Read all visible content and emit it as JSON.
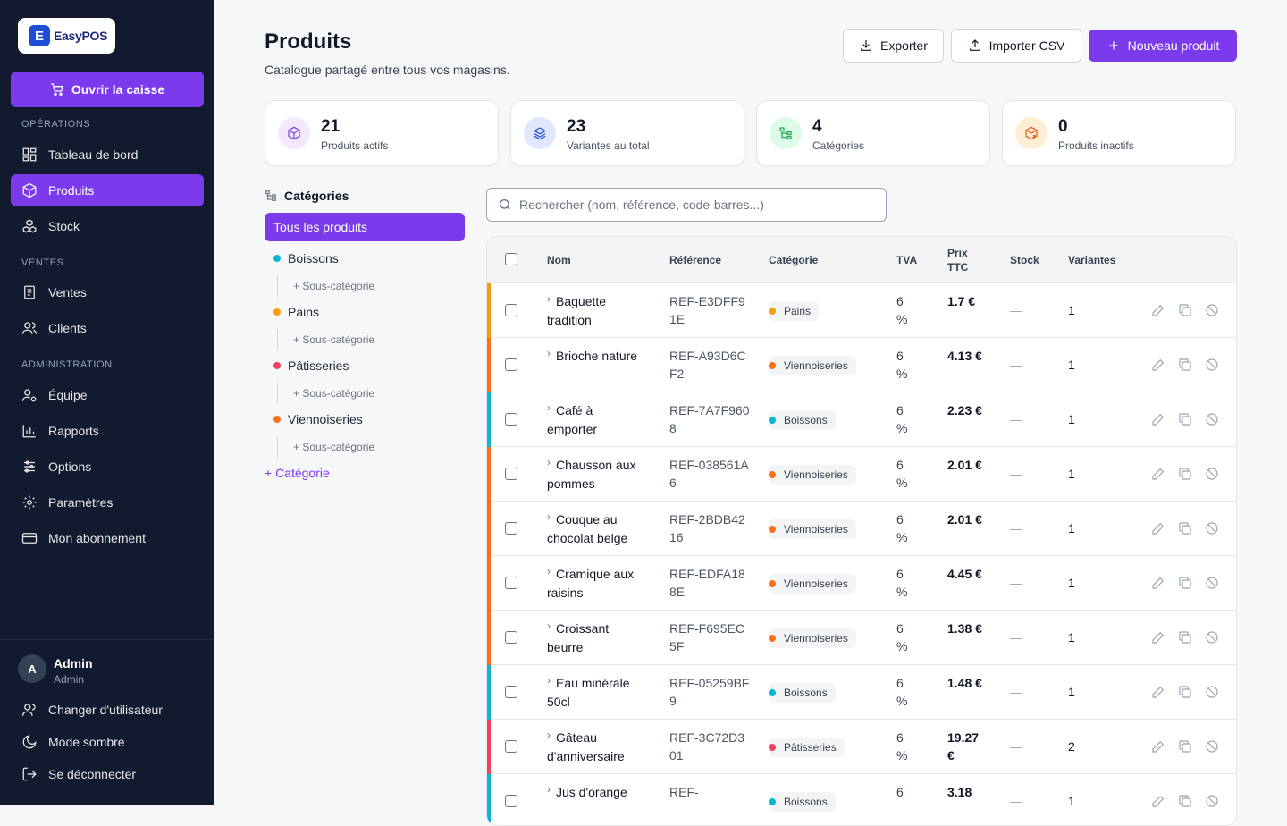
{
  "brand": {
    "name": "EasyPOS",
    "mark": "E"
  },
  "sidebar": {
    "open_register": "Ouvrir la caisse",
    "sections": {
      "operations": "OPÉRATIONS",
      "ventes": "VENTES",
      "admin": "ADMINISTRATION"
    },
    "items": [
      {
        "label": "Tableau de bord",
        "icon": "dashboard-icon"
      },
      {
        "label": "Produits",
        "icon": "box-icon",
        "active": true
      },
      {
        "label": "Stock",
        "icon": "boxes-icon"
      },
      {
        "label": "Ventes",
        "icon": "receipt-icon"
      },
      {
        "label": "Clients",
        "icon": "users-icon"
      },
      {
        "label": "Équipe",
        "icon": "team-icon"
      },
      {
        "label": "Rapports",
        "icon": "chart-icon"
      },
      {
        "label": "Options",
        "icon": "sliders-icon"
      },
      {
        "label": "Paramètres",
        "icon": "gear-icon"
      },
      {
        "label": "Mon abonnement",
        "icon": "card-icon"
      }
    ],
    "user": {
      "initial": "A",
      "name": "Admin",
      "role": "Admin"
    },
    "bottom": {
      "switch_user": "Changer d'utilisateur",
      "dark_mode": "Mode sombre",
      "logout": "Se déconnecter"
    }
  },
  "header": {
    "title": "Produits",
    "subtitle": "Catalogue partagé entre tous vos magasins.",
    "export": "Exporter",
    "import": "Importer CSV",
    "new": "Nouveau produit"
  },
  "stats": [
    {
      "value": "21",
      "label": "Produits actifs",
      "color": "#7c3aed",
      "bg": "#f3e8ff"
    },
    {
      "value": "23",
      "label": "Variantes au total",
      "color": "#1d4ed8",
      "bg": "#e0e7ff"
    },
    {
      "value": "4",
      "label": "Catégories",
      "color": "#16a34a",
      "bg": "#dcfce7"
    },
    {
      "value": "0",
      "label": "Produits inactifs",
      "color": "#ea580c",
      "bg": "#ffedd5"
    }
  ],
  "categories": {
    "heading": "Catégories",
    "all": "Tous les produits",
    "list": [
      {
        "name": "Boissons",
        "color": "#06b6d4"
      },
      {
        "name": "Pains",
        "color": "#f59e0b"
      },
      {
        "name": "Pâtisseries",
        "color": "#f43f5e"
      },
      {
        "name": "Viennoiseries",
        "color": "#f97316"
      }
    ],
    "sub_label": "+ Sous-catégorie",
    "add": "+ Catégorie"
  },
  "search": {
    "placeholder": "Rechercher (nom, référence, code-barres...)"
  },
  "table": {
    "columns": {
      "nom": "Nom",
      "ref": "Référence",
      "cat": "Catégorie",
      "tva": "TVA",
      "prix": "Prix TTC",
      "stock": "Stock",
      "variantes": "Variantes"
    },
    "rows": [
      {
        "name": "Baguette tradition",
        "ref": "REF-E3DFF91E",
        "cat": "Pains",
        "color": "#f59e0b",
        "tva": "6 %",
        "price": "1.7 €",
        "stock": "—",
        "variants": "1"
      },
      {
        "name": "Brioche nature",
        "ref": "REF-A93D6CF2",
        "cat": "Viennoiseries",
        "color": "#f97316",
        "tva": "6 %",
        "price": "4.13 €",
        "stock": "—",
        "variants": "1"
      },
      {
        "name": "Café à emporter",
        "ref": "REF-7A7F9608",
        "cat": "Boissons",
        "color": "#06b6d4",
        "tva": "6 %",
        "price": "2.23 €",
        "stock": "—",
        "variants": "1"
      },
      {
        "name": "Chausson aux pommes",
        "ref": "REF-038561A6",
        "cat": "Viennoiseries",
        "color": "#f97316",
        "tva": "6 %",
        "price": "2.01 €",
        "stock": "—",
        "variants": "1"
      },
      {
        "name": "Couque au chocolat belge",
        "ref": "REF-2BDB4216",
        "cat": "Viennoiseries",
        "color": "#f97316",
        "tva": "6 %",
        "price": "2.01 €",
        "stock": "—",
        "variants": "1"
      },
      {
        "name": "Cramique aux raisins",
        "ref": "REF-EDFA188E",
        "cat": "Viennoiseries",
        "color": "#f97316",
        "tva": "6 %",
        "price": "4.45 €",
        "stock": "—",
        "variants": "1"
      },
      {
        "name": "Croissant beurre",
        "ref": "REF-F695EC5F",
        "cat": "Viennoiseries",
        "color": "#f97316",
        "tva": "6 %",
        "price": "1.38 €",
        "stock": "—",
        "variants": "1"
      },
      {
        "name": "Eau minérale 50cl",
        "ref": "REF-05259BF9",
        "cat": "Boissons",
        "color": "#06b6d4",
        "tva": "6 %",
        "price": "1.48 €",
        "stock": "—",
        "variants": "1"
      },
      {
        "name": "Gâteau d'anniversaire",
        "ref": "REF-3C72D301",
        "cat": "Pâtisseries",
        "color": "#f43f5e",
        "tva": "6 %",
        "price": "19.27 €",
        "stock": "—",
        "variants": "2"
      },
      {
        "name": "Jus d'orange",
        "ref": "REF-",
        "cat": "Boissons",
        "color": "#06b6d4",
        "tva": "6",
        "price": "3.18",
        "stock": "—",
        "variants": "1"
      }
    ]
  }
}
